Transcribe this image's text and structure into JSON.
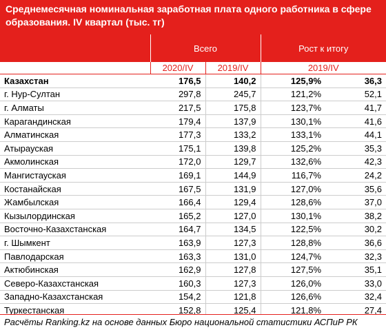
{
  "title": "Среднемесячная номинальная заработная плата одного работника в сфере образования. IV квартал (тыс. тг)",
  "headers": {
    "group_total": "Всего",
    "group_growth": "Рост к итогу",
    "sub_2020": "2020/IV",
    "sub_2019": "2019/IV",
    "sub_growth": "2019/IV"
  },
  "rows": [
    {
      "region": "Казахстан",
      "v2020": "176,5",
      "v2019": "140,2",
      "growth": "125,9%",
      "g2019": "36,3"
    },
    {
      "region": "г. Нур-Султан",
      "v2020": "297,8",
      "v2019": "245,7",
      "growth": "121,2%",
      "g2019": "52,1"
    },
    {
      "region": "г. Алматы",
      "v2020": "217,5",
      "v2019": "175,8",
      "growth": "123,7%",
      "g2019": "41,7"
    },
    {
      "region": "Карагандинская",
      "v2020": "179,4",
      "v2019": "137,9",
      "growth": "130,1%",
      "g2019": "41,6"
    },
    {
      "region": "Алматинская",
      "v2020": "177,3",
      "v2019": "133,2",
      "growth": "133,1%",
      "g2019": "44,1"
    },
    {
      "region": "Атырауская",
      "v2020": "175,1",
      "v2019": "139,8",
      "growth": "125,2%",
      "g2019": "35,3"
    },
    {
      "region": "Акмолинская",
      "v2020": "172,0",
      "v2019": "129,7",
      "growth": "132,6%",
      "g2019": "42,3"
    },
    {
      "region": "Мангистауская",
      "v2020": "169,1",
      "v2019": "144,9",
      "growth": "116,7%",
      "g2019": "24,2"
    },
    {
      "region": "Костанайская",
      "v2020": "167,5",
      "v2019": "131,9",
      "growth": "127,0%",
      "g2019": "35,6"
    },
    {
      "region": "Жамбылская",
      "v2020": "166,4",
      "v2019": "129,4",
      "growth": "128,6%",
      "g2019": "37,0"
    },
    {
      "region": "Кызылординская",
      "v2020": "165,2",
      "v2019": "127,0",
      "growth": "130,1%",
      "g2019": "38,2"
    },
    {
      "region": "Восточно-Казахстанская",
      "v2020": "164,7",
      "v2019": "134,5",
      "growth": "122,5%",
      "g2019": "30,2"
    },
    {
      "region": "г. Шымкент",
      "v2020": "163,9",
      "v2019": "127,3",
      "growth": "128,8%",
      "g2019": "36,6"
    },
    {
      "region": "Павлодарская",
      "v2020": "163,3",
      "v2019": "131,0",
      "growth": "124,7%",
      "g2019": "32,3"
    },
    {
      "region": "Актюбинская",
      "v2020": "162,9",
      "v2019": "127,8",
      "growth": "127,5%",
      "g2019": "35,1"
    },
    {
      "region": "Северо-Казахстанская",
      "v2020": "160,3",
      "v2019": "127,3",
      "growth": "126,0%",
      "g2019": "33,0"
    },
    {
      "region": "Западно-Казахстанская",
      "v2020": "154,2",
      "v2019": "121,8",
      "growth": "126,6%",
      "g2019": "32,4"
    },
    {
      "region": "Туркестанская",
      "v2020": "152,8",
      "v2019": "125,4",
      "growth": "121,8%",
      "g2019": "27,4"
    }
  ],
  "footer": "Расчёты Ranking.kz на основе данных Бюро национальной статистики АСПиР РК",
  "colors": {
    "accent": "#e4201c"
  }
}
